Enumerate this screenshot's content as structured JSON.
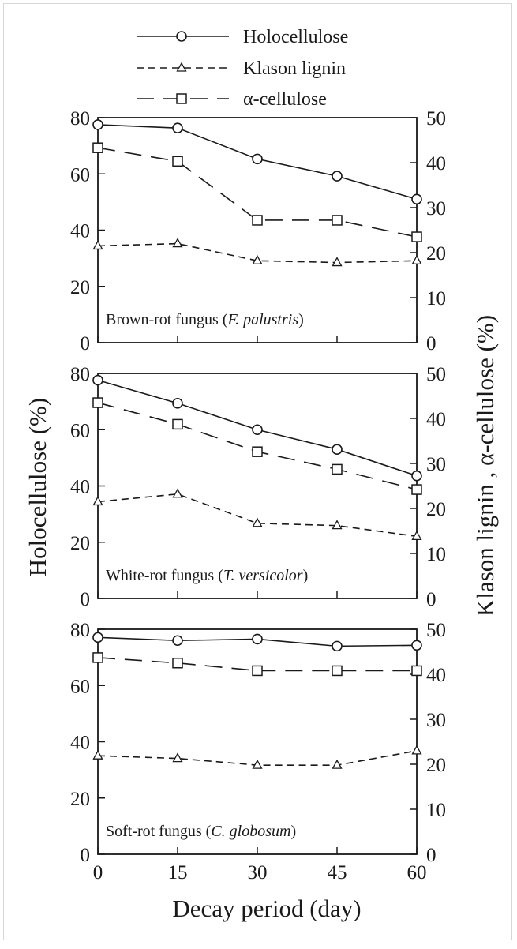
{
  "chart_data": {
    "type": "line",
    "x": [
      0,
      15,
      30,
      45,
      60
    ],
    "xlabel": "Decay period (day)",
    "ylabel_left": "Holocellulose (%)",
    "ylabel_right": "Klason lignin , α-cellulose (%)",
    "xlim": [
      0,
      60
    ],
    "ylim_left": [
      0,
      80
    ],
    "ylim_right": [
      0,
      50
    ],
    "xticks": [
      "0",
      "15",
      "30",
      "45",
      "60"
    ],
    "yticks_left": [
      "0",
      "20",
      "40",
      "60",
      "80"
    ],
    "yticks_right": [
      "0",
      "10",
      "20",
      "30",
      "40",
      "50"
    ],
    "grid": false,
    "legend": {
      "position": "top",
      "entries": [
        {
          "name": "Holocellulose",
          "style": "solid",
          "marker": "circle",
          "axis": "left"
        },
        {
          "name": "Klason lignin",
          "style": "short-dash",
          "marker": "triangle",
          "axis": "right"
        },
        {
          "name": "α-cellulose",
          "style": "long-dash",
          "marker": "square",
          "axis": "right"
        }
      ]
    },
    "panels": [
      {
        "label": "Brown-rot fungus (F. palustris)",
        "label_prefix": "Brown-rot fungus (",
        "label_species": "F. palustris",
        "label_suffix": ")",
        "series": [
          {
            "name": "Holocellulose",
            "values": [
              77.5,
              76.3,
              65.3,
              59.2,
              51.0
            ]
          },
          {
            "name": "Klason lignin",
            "values": [
              21.5,
              22.0,
              18.2,
              17.8,
              18.2
            ]
          },
          {
            "name": "α-cellulose",
            "values": [
              43.3,
              40.3,
              27.2,
              27.2,
              23.5
            ]
          }
        ]
      },
      {
        "label": "White-rot fungus (T. versicolor)",
        "label_prefix": "White-rot fungus (",
        "label_species": "T. versicolor",
        "label_suffix": ")",
        "series": [
          {
            "name": "Holocellulose",
            "values": [
              77.6,
              69.4,
              60.0,
              53.0,
              43.6
            ]
          },
          {
            "name": "Klason lignin",
            "values": [
              21.5,
              23.2,
              16.7,
              16.2,
              13.8
            ]
          },
          {
            "name": "α-cellulose",
            "values": [
              43.5,
              38.7,
              32.6,
              28.7,
              24.2
            ]
          }
        ]
      },
      {
        "label": "Soft-rot fungus (C. globosum)",
        "label_prefix": "Soft-rot fungus (",
        "label_species": "C. globosum",
        "label_suffix": ")",
        "series": [
          {
            "name": "Holocellulose",
            "values": [
              77.1,
              76.0,
              76.5,
              74.0,
              74.3
            ]
          },
          {
            "name": "Klason lignin",
            "values": [
              21.9,
              21.3,
              19.8,
              19.8,
              23.0
            ]
          },
          {
            "name": "α-cellulose",
            "values": [
              43.7,
              42.5,
              40.8,
              40.8,
              40.8
            ]
          }
        ]
      }
    ]
  },
  "colors": {
    "line": "#1a1a1a",
    "marker_fill": "#ffffff",
    "background": "#ffffff",
    "frame": "#d6d6d6"
  }
}
